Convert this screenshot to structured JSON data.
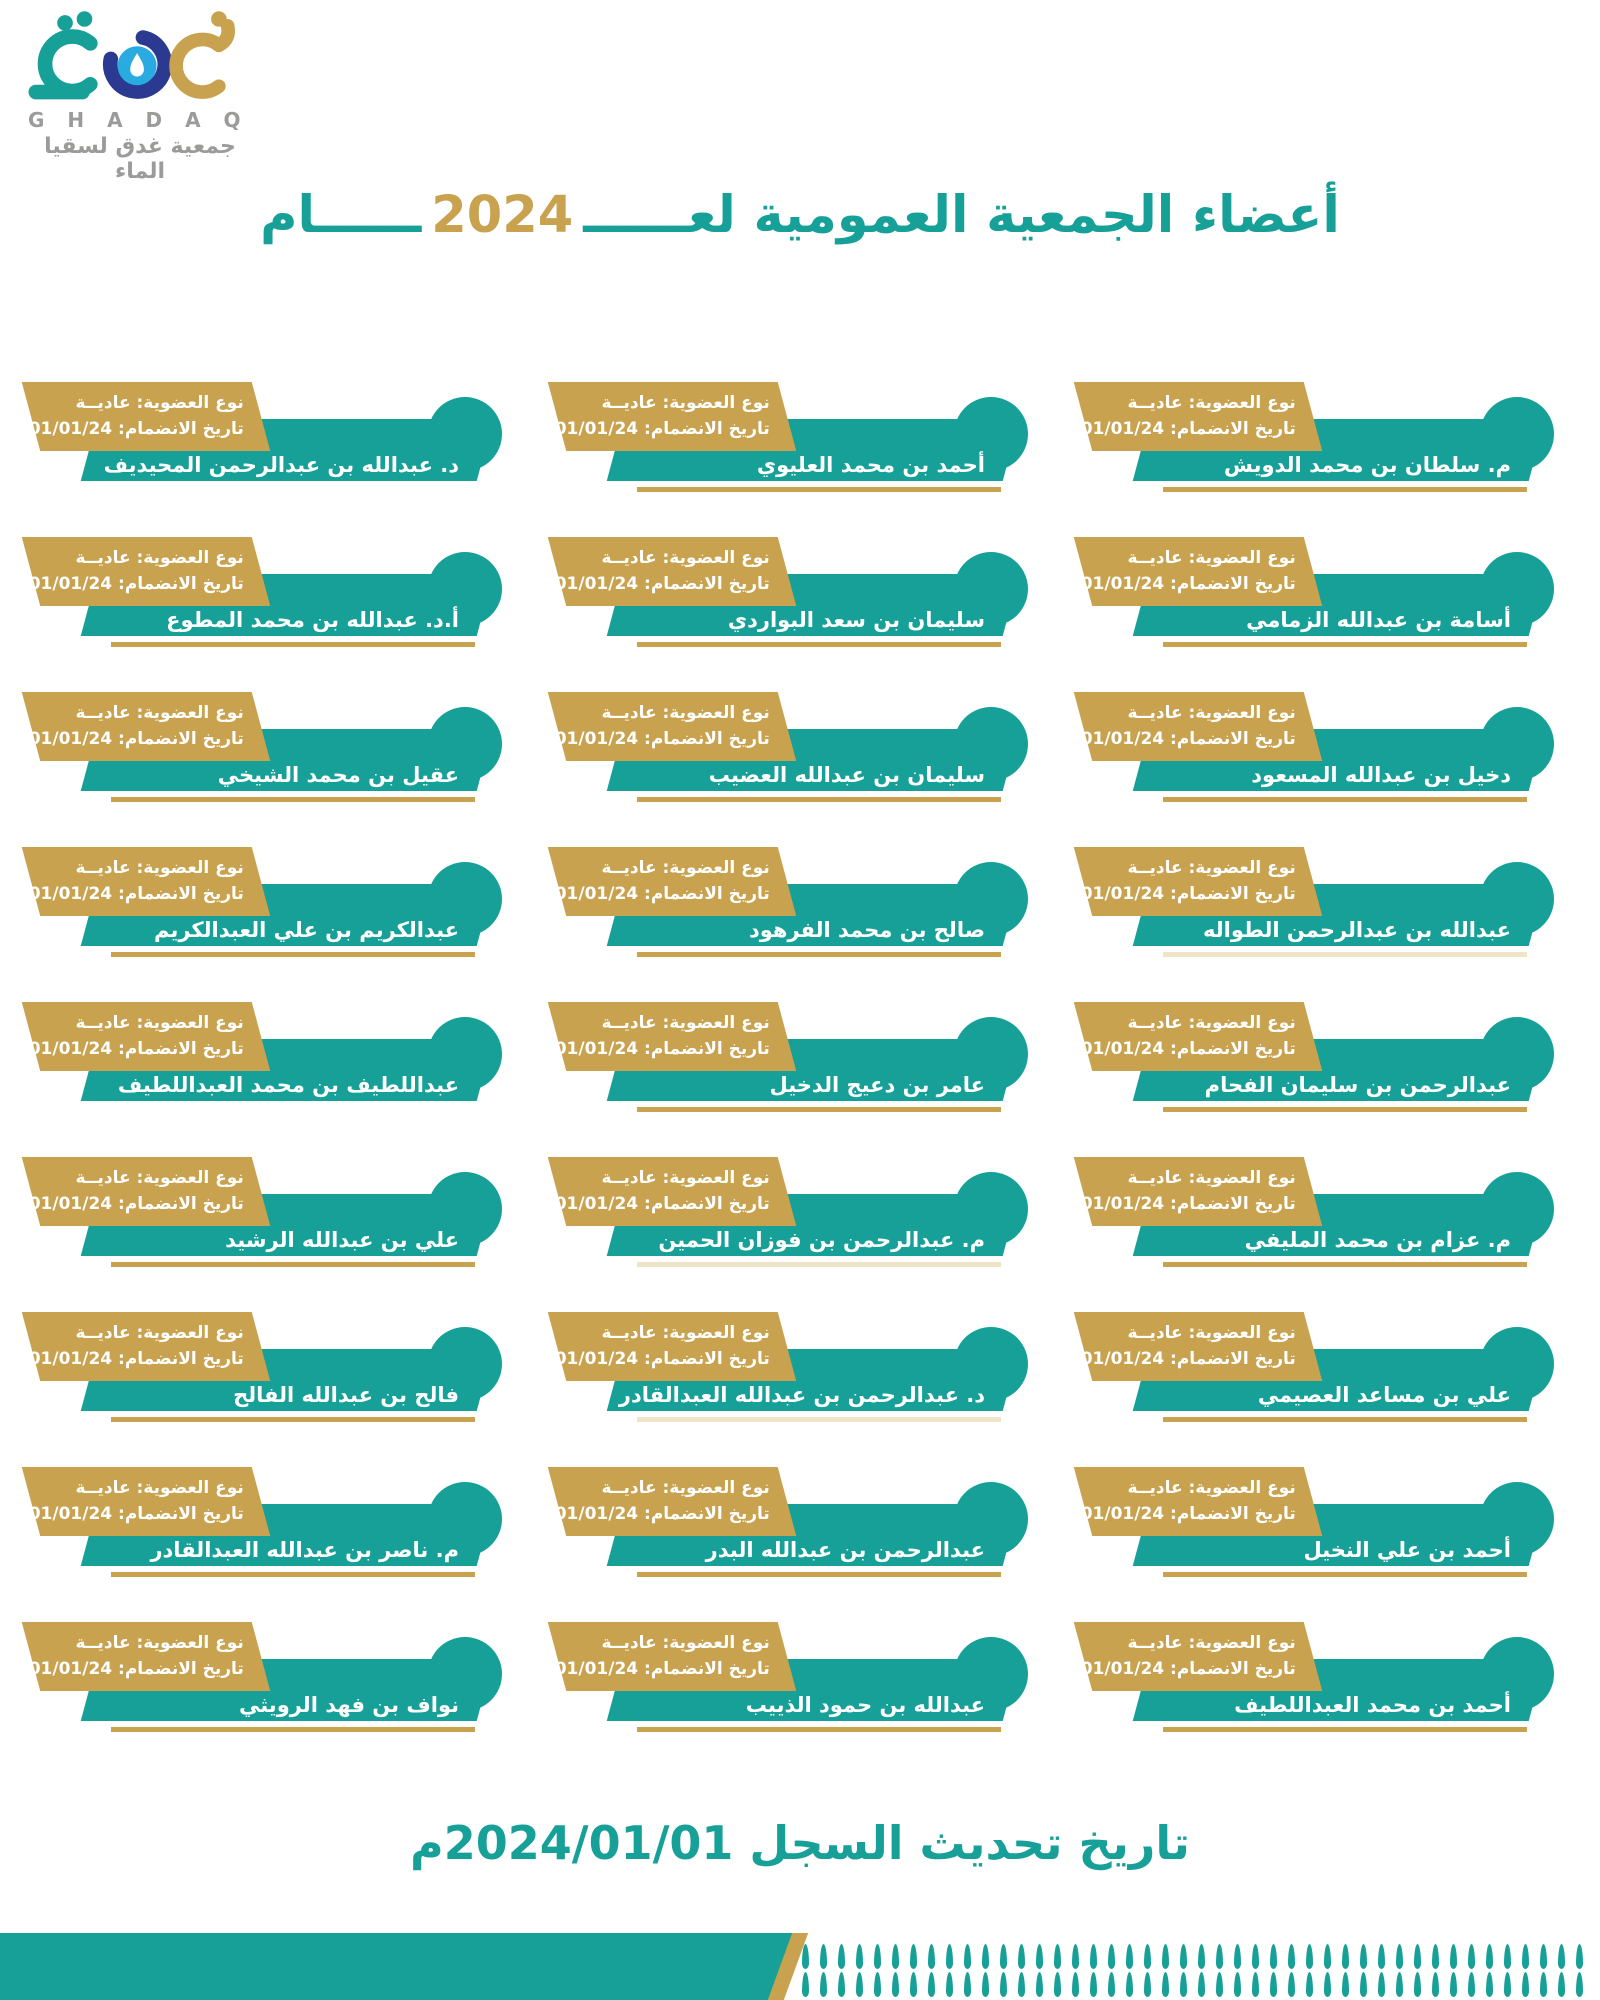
{
  "logo": {
    "brand_latin": "G H A D A Q",
    "brand_arabic": "جمعية غدق لسقيا الماء"
  },
  "title": {
    "pre": "أعضاء الجمعية العمومية لعــــــ",
    "year": "2024",
    "post": "ــــــام"
  },
  "card_labels": {
    "membership": "نوع العضوية: عاديــة",
    "join_date": "تاريخ الانضمام: 01/01/24"
  },
  "members": [
    {
      "name": "م. سلطان بن محمد الدويش",
      "underline": "gold"
    },
    {
      "name": "أحمد بن محمد العليوي",
      "underline": "gold"
    },
    {
      "name": "د. عبدالله بن عبدالرحمن المحيديف",
      "underline": "none"
    },
    {
      "name": "أسامة بن عبدالله الزمامي",
      "underline": "gold"
    },
    {
      "name": "سليمان بن سعد البواردي",
      "underline": "gold"
    },
    {
      "name": "أ.د. عبدالله بن محمد المطوع",
      "underline": "gold"
    },
    {
      "name": "دخيل بن عبدالله المسعود",
      "underline": "gold"
    },
    {
      "name": "سليمان بن عبدالله العضيب",
      "underline": "gold"
    },
    {
      "name": "عقيل بن محمد الشيخي",
      "underline": "gold"
    },
    {
      "name": "عبدالله بن عبدالرحمن الطواله",
      "underline": "faint"
    },
    {
      "name": "صالح بن محمد الفرهود",
      "underline": "gold"
    },
    {
      "name": "عبدالكريم بن علي العبدالكريم",
      "underline": "gold"
    },
    {
      "name": "عبدالرحمن بن سليمان الفحام",
      "underline": "gold"
    },
    {
      "name": "عامر بن دعيج الدخيل",
      "underline": "gold"
    },
    {
      "name": "عبداللطيف بن محمد العبداللطيف",
      "underline": "none"
    },
    {
      "name": "م. عزام بن محمد المليفي",
      "underline": "gold"
    },
    {
      "name": "م. عبدالرحمن بن فوزان الحمين",
      "underline": "faint"
    },
    {
      "name": "علي بن عبدالله الرشيد",
      "underline": "gold"
    },
    {
      "name": "علي بن مساعد العصيمي",
      "underline": "gold"
    },
    {
      "name": "د. عبدالرحمن بن عبدالله العبدالقادر",
      "underline": "faint"
    },
    {
      "name": "فالح بن عبدالله الفالح",
      "underline": "gold"
    },
    {
      "name": "أحمد بن علي النخيل",
      "underline": "gold"
    },
    {
      "name": "عبدالرحمن بن عبدالله البدر",
      "underline": "gold"
    },
    {
      "name": "م. ناصر بن عبدالله العبدالقادر",
      "underline": "gold"
    },
    {
      "name": "أحمد بن محمد العبداللطيف",
      "underline": "gold"
    },
    {
      "name": "عبدالله بن حمود الذييب",
      "underline": "gold"
    },
    {
      "name": "نواف بن فهد الرويثي",
      "underline": "gold"
    }
  ],
  "footer": {
    "update_text": "تاريخ تحديث السجل 2024/01/01م"
  },
  "colors": {
    "teal": "#17A098",
    "gold": "#C8A24E",
    "faint_gold": "#EFE4C8",
    "gray": "#9B9B9A",
    "dark_blue": "#2B3990",
    "light_blue": "#29ABE2",
    "white": "#FFFFFF"
  }
}
